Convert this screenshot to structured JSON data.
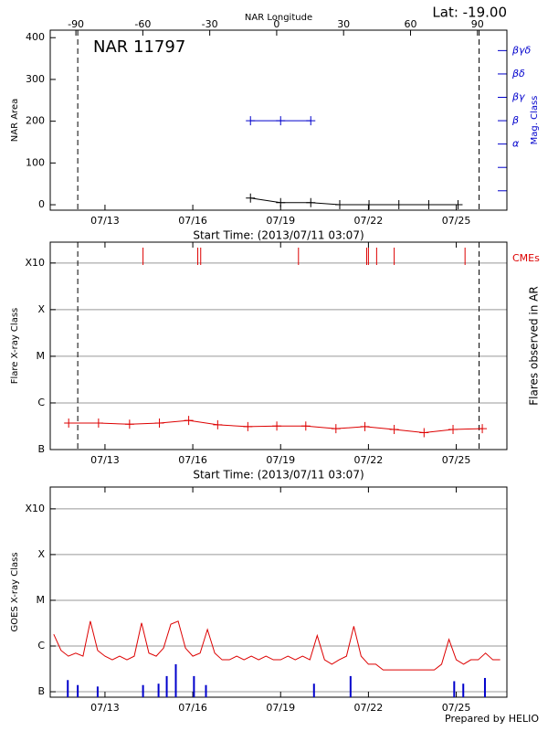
{
  "chart_data": [
    {
      "type": "line",
      "title": "NAR 11797",
      "annotation": "Lat: -19.00",
      "xlabel": "Start Time: (2013/07/11 03:07)",
      "ylabel": "NAR Area",
      "y2label": "Mag. Class",
      "y2color": "#0000cc",
      "x2label": "NAR Longitude",
      "x2lim": [
        -101.5,
        103.2
      ],
      "x2ticks": [
        -90,
        -60,
        -30,
        0,
        30,
        60,
        90
      ],
      "xlim": [
        11.13,
        26.73
      ],
      "xticks": [
        {
          "value": 13,
          "label": "07/13"
        },
        {
          "value": 16,
          "label": "07/16"
        },
        {
          "value": 19,
          "label": "07/19"
        },
        {
          "value": 22,
          "label": "07/22"
        },
        {
          "value": 25,
          "label": "07/25"
        }
      ],
      "ylim": [
        -13,
        418
      ],
      "yticks": [
        0,
        100,
        200,
        300,
        400
      ],
      "ylog": false,
      "grid": false,
      "y2lim": [
        -0.83,
        6.875
      ],
      "y2ticks": [
        {
          "value": 0,
          "label": null
        },
        {
          "value": 1,
          "label": null
        },
        {
          "value": 2,
          "label": "α"
        },
        {
          "value": 3,
          "label": "β"
        },
        {
          "value": 4,
          "label": "βγ"
        },
        {
          "value": 5,
          "label": "βδ"
        },
        {
          "value": 6,
          "label": "βγδ"
        }
      ],
      "limb_x": [
        12.07,
        25.78
      ],
      "series": [
        {
          "color": "#000000",
          "markers": true,
          "x": [
            17.97,
            19.0,
            20.03,
            21.02,
            22.02,
            23.04,
            24.06,
            25.06
          ],
          "values": [
            16,
            5,
            5,
            0,
            0,
            0,
            0,
            0
          ]
        },
        {
          "color": "#0000cc",
          "markers": true,
          "axis": "y2",
          "x": [
            17.97,
            19.0,
            20.03
          ],
          "values": [
            3,
            3,
            3
          ]
        }
      ]
    },
    {
      "type": "line",
      "xlabel": "Start Time: (2013/07/11 03:07)",
      "ylabel": "Flare X-ray Class",
      "y2label": "Flares observed in AR",
      "y2color": "#000000",
      "xlim": [
        11.13,
        26.73
      ],
      "xticks": [
        {
          "value": 13,
          "label": "07/13"
        },
        {
          "value": 16,
          "label": "07/16"
        },
        {
          "value": 19,
          "label": "07/19"
        },
        {
          "value": 22,
          "label": "07/22"
        },
        {
          "value": 25,
          "label": "07/25"
        }
      ],
      "ylim": [
        1e-07,
        0.0028
      ],
      "ylog": true,
      "grid": true,
      "yticks": [
        {
          "value": 1e-07,
          "label": "B"
        },
        {
          "value": 1e-06,
          "label": "C"
        },
        {
          "value": 1e-05,
          "label": "M"
        },
        {
          "value": 0.0001,
          "label": "X"
        },
        {
          "value": 0.001,
          "label": "X10"
        }
      ],
      "limb_x": [
        12.07,
        25.78
      ],
      "events": {
        "name": "CMEs",
        "color": "#dd0000",
        "x": [
          14.3,
          16.17,
          16.27,
          19.61,
          21.94,
          22.0,
          22.28,
          22.88,
          25.3
        ]
      },
      "series": [
        {
          "color": "#dd0000",
          "markers": true,
          "x": [
            11.76,
            12.78,
            13.84,
            14.86,
            15.86,
            16.85,
            17.88,
            18.87,
            19.86,
            20.89,
            21.88,
            22.88,
            23.9,
            24.89,
            25.89
          ],
          "values": [
            3.7e-07,
            3.7e-07,
            3.5e-07,
            3.7e-07,
            4.2e-07,
            3.4e-07,
            3.1e-07,
            3.2e-07,
            3.2e-07,
            2.8e-07,
            3.1e-07,
            2.7e-07,
            2.3e-07,
            2.7e-07,
            2.8e-07
          ]
        }
      ]
    },
    {
      "type": "line",
      "ylabel": "GOES X-ray Class",
      "xlim": [
        11.13,
        26.73
      ],
      "xticks": [
        {
          "value": 13,
          "label": "07/13"
        },
        {
          "value": 16,
          "label": "07/16"
        },
        {
          "value": 19,
          "label": "07/19"
        },
        {
          "value": 22,
          "label": "07/22"
        },
        {
          "value": 25,
          "label": "07/25"
        }
      ],
      "ylim": [
        7.6e-08,
        0.003
      ],
      "ylog": true,
      "grid": true,
      "yticks": [
        {
          "value": 1e-07,
          "label": "B"
        },
        {
          "value": 1e-06,
          "label": "C"
        },
        {
          "value": 1e-05,
          "label": "M"
        },
        {
          "value": 0.0001,
          "label": "X"
        },
        {
          "value": 0.001,
          "label": "X10"
        }
      ],
      "series": [
        {
          "color": "#dd0000",
          "markers": false,
          "x": [
            11.25,
            11.5,
            11.75,
            12.0,
            12.25,
            12.5,
            12.75,
            13.0,
            13.25,
            13.5,
            13.75,
            14.0,
            14.25,
            14.5,
            14.75,
            15.0,
            15.25,
            15.5,
            15.75,
            16.0,
            16.25,
            16.5,
            16.75,
            17.0,
            17.25,
            17.5,
            17.75,
            18.0,
            18.25,
            18.5,
            18.75,
            19.0,
            19.25,
            19.5,
            19.75,
            20.0,
            20.25,
            20.5,
            20.75,
            21.0,
            21.25,
            21.5,
            21.75,
            22.0,
            22.25,
            22.5,
            22.75,
            23.0,
            23.25,
            23.5,
            23.75,
            24.0,
            24.25,
            24.5,
            24.75,
            25.0,
            25.25,
            25.5,
            25.75,
            26.0,
            26.25,
            26.5
          ],
          "values": [
            1.8e-06,
            8e-07,
            6e-07,
            7e-07,
            6e-07,
            3.5e-06,
            8e-07,
            6e-07,
            5e-07,
            6e-07,
            5e-07,
            6e-07,
            3.2e-06,
            7e-07,
            6e-07,
            9e-07,
            3e-06,
            3.5e-06,
            9e-07,
            6e-07,
            7e-07,
            2.3e-06,
            7e-07,
            5e-07,
            5e-07,
            6e-07,
            5e-07,
            6e-07,
            5e-07,
            6e-07,
            5e-07,
            5e-07,
            6e-07,
            5e-07,
            6e-07,
            5e-07,
            1.7e-06,
            5e-07,
            4e-07,
            5e-07,
            6e-07,
            2.7e-06,
            6e-07,
            4e-07,
            4e-07,
            3e-07,
            3e-07,
            3e-07,
            3e-07,
            3e-07,
            3e-07,
            3e-07,
            3e-07,
            4e-07,
            1.4e-06,
            5e-07,
            4e-07,
            5e-07,
            5e-07,
            7e-07,
            5e-07,
            5e-07
          ]
        },
        {
          "type": "bar",
          "color": "#0000cc",
          "x": [
            11.73,
            12.07,
            12.75,
            14.3,
            14.83,
            15.11,
            15.42,
            16.04,
            16.45,
            20.14,
            21.39,
            24.93,
            25.24,
            25.98
          ],
          "values": [
            1.8e-07,
            1.4e-07,
            1.3e-07,
            1.4e-07,
            1.5e-07,
            2.2e-07,
            4e-07,
            2.2e-07,
            1.4e-07,
            1.5e-07,
            2.2e-07,
            1.7e-07,
            1.5e-07,
            2e-07
          ]
        }
      ]
    }
  ],
  "footer": "Prepared by HELIO"
}
